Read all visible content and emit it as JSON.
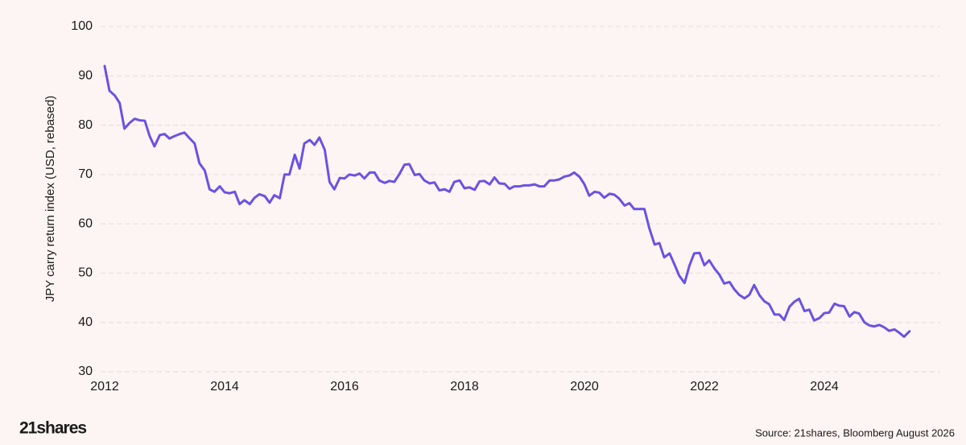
{
  "chart_data": {
    "type": "line",
    "y_label": "JPY carry return index (USD, rebased)",
    "source": "Source: 21shares, Bloomberg August 2026",
    "brand": "21shares",
    "x": [
      2012,
      2012.08,
      2012.17,
      2012.25,
      2012.33,
      2012.42,
      2012.5,
      2012.58,
      2012.67,
      2012.75,
      2012.83,
      2012.92,
      2013,
      2013.08,
      2013.17,
      2013.25,
      2013.33,
      2013.42,
      2013.5,
      2013.58,
      2013.67,
      2013.75,
      2013.83,
      2013.92,
      2014,
      2014.08,
      2014.17,
      2014.25,
      2014.33,
      2014.42,
      2014.5,
      2014.58,
      2014.67,
      2014.75,
      2014.83,
      2014.92,
      2015,
      2015.08,
      2015.17,
      2015.25,
      2015.33,
      2015.42,
      2015.5,
      2015.58,
      2015.67,
      2015.75,
      2015.83,
      2015.92,
      2016,
      2016.08,
      2016.17,
      2016.25,
      2016.33,
      2016.42,
      2016.5,
      2016.58,
      2016.67,
      2016.75,
      2016.83,
      2016.92,
      2017,
      2017.08,
      2017.17,
      2017.25,
      2017.33,
      2017.42,
      2017.5,
      2017.58,
      2017.67,
      2017.75,
      2017.83,
      2017.92,
      2018,
      2018.08,
      2018.17,
      2018.25,
      2018.33,
      2018.42,
      2018.5,
      2018.58,
      2018.67,
      2018.75,
      2018.83,
      2018.92,
      2019,
      2019.08,
      2019.17,
      2019.25,
      2019.33,
      2019.42,
      2019.5,
      2019.58,
      2019.67,
      2019.75,
      2019.83,
      2019.92,
      2020,
      2020.08,
      2020.17,
      2020.25,
      2020.33,
      2020.42,
      2020.5,
      2020.58,
      2020.67,
      2020.75,
      2020.83,
      2020.92,
      2021,
      2021.08,
      2021.17,
      2021.25,
      2021.33,
      2021.42,
      2021.5,
      2021.58,
      2021.67,
      2021.75,
      2021.83,
      2021.92,
      2022,
      2022.08,
      2022.17,
      2022.25,
      2022.33,
      2022.42,
      2022.5,
      2022.58,
      2022.67,
      2022.75,
      2022.83,
      2022.92,
      2023,
      2023.08,
      2023.17,
      2023.25,
      2023.33,
      2023.42,
      2023.5,
      2023.58,
      2023.67,
      2023.75,
      2023.83,
      2023.92,
      2024,
      2024.08,
      2024.17,
      2024.25,
      2024.33,
      2024.42,
      2024.5,
      2024.58,
      2024.67,
      2024.75,
      2024.83,
      2024.92,
      2025,
      2025.08,
      2025.17,
      2025.25,
      2025.33,
      2025.42
    ],
    "series": [
      {
        "name": "JPY carry return index",
        "color": "#6a52e3",
        "values": [
          92,
          87,
          86,
          84.5,
          79.3,
          80.5,
          81.3,
          81,
          80.9,
          77.8,
          75.7,
          78,
          78.2,
          77.3,
          77.8,
          78.2,
          78.5,
          77.3,
          76.3,
          72.3,
          70.8,
          67,
          66.5,
          67.6,
          66.4,
          66.2,
          66.5,
          64,
          64.8,
          64,
          65.3,
          66,
          65.6,
          64.3,
          65.8,
          65.2,
          70,
          70,
          74,
          71.2,
          76.3,
          77,
          76,
          77.5,
          75,
          68.5,
          67,
          69.3,
          69.2,
          70,
          69.8,
          70.2,
          69.2,
          70.4,
          70.4,
          68.8,
          68.3,
          68.7,
          68.5,
          70.2,
          72,
          72.1,
          69.9,
          70.1,
          68.8,
          68.2,
          68.4,
          66.8,
          67,
          66.5,
          68.5,
          68.8,
          67.2,
          67.4,
          66.9,
          68.6,
          68.7,
          68,
          69.4,
          68.2,
          68.1,
          67.1,
          67.6,
          67.6,
          67.8,
          67.8,
          68,
          67.6,
          67.6,
          68.8,
          68.8,
          69,
          69.6,
          69.8,
          70.4,
          69.5,
          68,
          65.7,
          66.5,
          66.3,
          65.3,
          66.1,
          65.9,
          65.1,
          63.7,
          64.2,
          63,
          63,
          63,
          59.2,
          55.8,
          56.1,
          53.2,
          54,
          51.8,
          49.5,
          48,
          51.5,
          54,
          54.1,
          51.6,
          52.6,
          50.9,
          49.7,
          47.9,
          48.2,
          46.7,
          45.6,
          44.9,
          45.6,
          47.6,
          45.5,
          44.3,
          43.7,
          41.6,
          41.6,
          40.5,
          43.2,
          44.2,
          44.8,
          42.3,
          42.6,
          40.4,
          40.9,
          41.9,
          42,
          43.8,
          43.4,
          43.3,
          41.2,
          42.1,
          41.8,
          40,
          39.4,
          39.2,
          39.5,
          39,
          38.3,
          38.6,
          37.9,
          37.1,
          38.2
        ]
      }
    ],
    "xlim": [
      2012,
      2026
    ],
    "xticks": [
      2012,
      2014,
      2016,
      2018,
      2020,
      2022,
      2024
    ],
    "ylim": [
      30,
      100
    ],
    "yticks": [
      30,
      40,
      50,
      60,
      70,
      80,
      90,
      100
    ],
    "grid": true
  }
}
